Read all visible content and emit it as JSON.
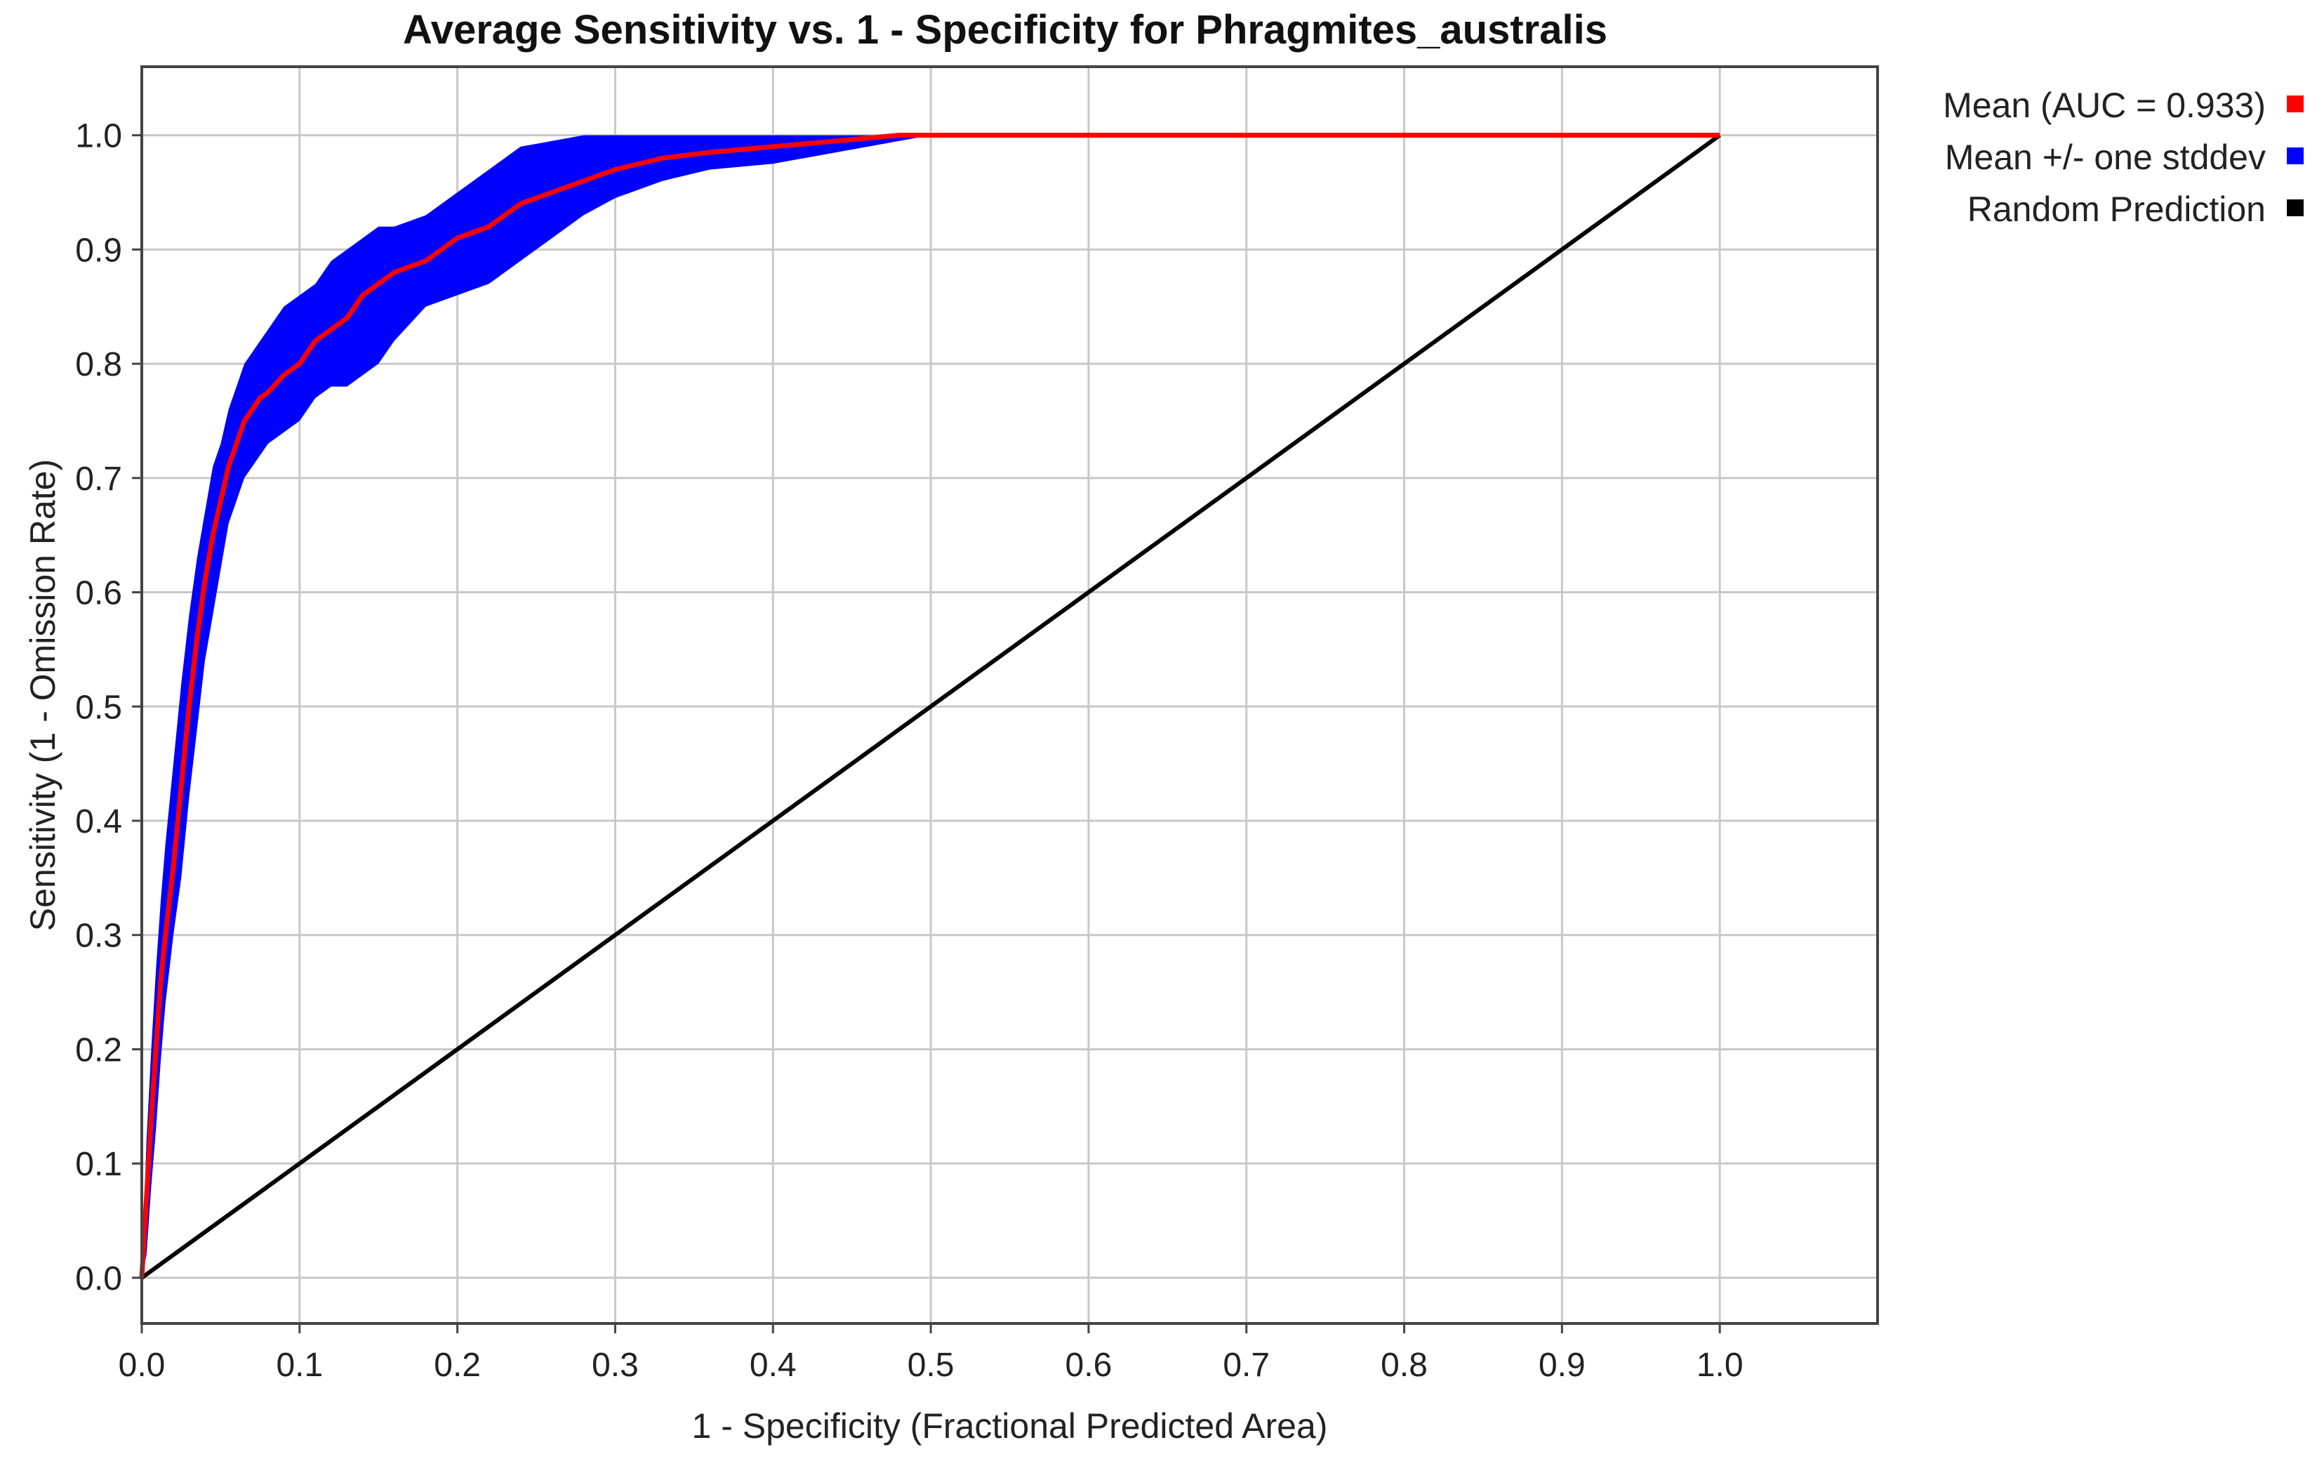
{
  "chart_data": {
    "type": "line",
    "title": "Average Sensitivity vs. 1 - Specificity for Phragmites_australis",
    "xlabel": "1 - Specificity (Fractional Predicted Area)",
    "ylabel": "Sensitivity (1 - Omission Rate)",
    "xlim": [
      0,
      1.1
    ],
    "ylim": [
      -0.04,
      1.06
    ],
    "xticks": [
      "0.0",
      "0.1",
      "0.2",
      "0.3",
      "0.4",
      "0.5",
      "0.6",
      "0.7",
      "0.8",
      "0.9",
      "1.0"
    ],
    "yticks": [
      "0.0",
      "0.1",
      "0.2",
      "0.3",
      "0.4",
      "0.5",
      "0.6",
      "0.7",
      "0.8",
      "0.9",
      "1.0"
    ],
    "grid": true,
    "legend_position": "top-right, outside plot",
    "series": [
      {
        "name": "Mean (AUC = 0.933)",
        "color": "#ff0000",
        "x": [
          0,
          0.003,
          0.006,
          0.009,
          0.012,
          0.015,
          0.02,
          0.025,
          0.03,
          0.035,
          0.04,
          0.045,
          0.05,
          0.055,
          0.06,
          0.065,
          0.07,
          0.075,
          0.08,
          0.09,
          0.1,
          0.11,
          0.12,
          0.13,
          0.14,
          0.15,
          0.16,
          0.18,
          0.2,
          0.22,
          0.24,
          0.26,
          0.28,
          0.3,
          0.33,
          0.36,
          0.4,
          0.44,
          0.48,
          0.5,
          0.6,
          0.7,
          0.8,
          0.9,
          1.0
        ],
        "y": [
          0,
          0.07,
          0.14,
          0.2,
          0.26,
          0.3,
          0.36,
          0.43,
          0.5,
          0.56,
          0.61,
          0.65,
          0.68,
          0.71,
          0.73,
          0.75,
          0.76,
          0.77,
          0.775,
          0.79,
          0.8,
          0.82,
          0.83,
          0.84,
          0.86,
          0.87,
          0.88,
          0.89,
          0.91,
          0.92,
          0.94,
          0.95,
          0.96,
          0.97,
          0.98,
          0.985,
          0.99,
          0.995,
          1.0,
          1.0,
          1.0,
          1.0,
          1.0,
          1.0,
          1.0
        ]
      },
      {
        "name": "Mean +/- one stddev",
        "color": "#0000ff",
        "x": [
          0,
          0.003,
          0.006,
          0.009,
          0.012,
          0.015,
          0.02,
          0.025,
          0.03,
          0.035,
          0.04,
          0.045,
          0.05,
          0.055,
          0.06,
          0.065,
          0.07,
          0.075,
          0.08,
          0.09,
          0.1,
          0.11,
          0.12,
          0.13,
          0.14,
          0.15,
          0.16,
          0.18,
          0.2,
          0.22,
          0.24,
          0.26,
          0.28,
          0.3,
          0.33,
          0.36,
          0.4,
          0.44,
          0.48,
          0.5,
          0.6,
          0.7,
          0.8,
          0.9,
          1.0
        ],
        "upper": [
          0,
          0.12,
          0.2,
          0.27,
          0.33,
          0.38,
          0.45,
          0.52,
          0.58,
          0.63,
          0.67,
          0.71,
          0.73,
          0.76,
          0.78,
          0.8,
          0.81,
          0.82,
          0.83,
          0.85,
          0.86,
          0.87,
          0.89,
          0.9,
          0.91,
          0.92,
          0.92,
          0.93,
          0.95,
          0.97,
          0.99,
          0.995,
          1.0,
          1.0,
          1.0,
          1.0,
          1.0,
          1.0,
          1.0,
          1.0,
          1.0,
          1.0,
          1.0,
          1.0,
          1.0
        ],
        "lower": [
          0,
          0.02,
          0.08,
          0.13,
          0.19,
          0.24,
          0.3,
          0.35,
          0.42,
          0.48,
          0.54,
          0.58,
          0.62,
          0.66,
          0.68,
          0.7,
          0.71,
          0.72,
          0.73,
          0.74,
          0.75,
          0.77,
          0.78,
          0.78,
          0.79,
          0.8,
          0.82,
          0.85,
          0.86,
          0.87,
          0.89,
          0.91,
          0.93,
          0.945,
          0.96,
          0.97,
          0.975,
          0.985,
          0.995,
          1.0,
          1.0,
          1.0,
          1.0,
          1.0,
          1.0
        ]
      },
      {
        "name": "Random Prediction",
        "color": "#000000",
        "x": [
          0,
          1.0
        ],
        "y": [
          0,
          1.0
        ]
      }
    ]
  }
}
